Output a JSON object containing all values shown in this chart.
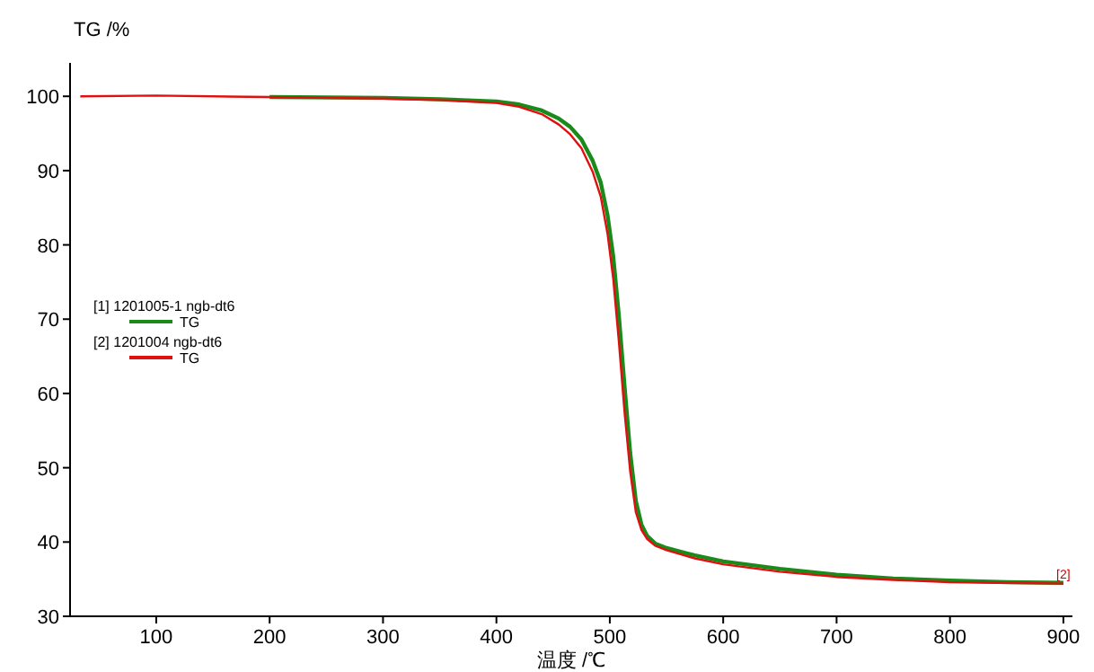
{
  "chart_data": {
    "type": "line",
    "xlabel": "温度 /℃",
    "ylabel": "TG /%",
    "xlim": [
      24,
      908
    ],
    "ylim": [
      30,
      104.5
    ],
    "xticks": [
      100,
      200,
      300,
      400,
      500,
      600,
      700,
      800,
      900
    ],
    "yticks": [
      30,
      40,
      50,
      60,
      70,
      80,
      90,
      100
    ],
    "grid": false,
    "legend": "left",
    "annotations": [
      "[1] 1201005-1 ngb-dt6",
      "[2] 1201004 ngb-dt6",
      {
        "text": "[2]",
        "x": 900,
        "y": 34.6
      }
    ],
    "series": [
      {
        "name": "TG",
        "color": "#1a8a1a",
        "x": [
          200,
          300,
          350,
          400,
          420,
          440,
          455,
          465,
          475,
          485,
          492,
          498,
          503,
          508,
          513,
          518,
          523,
          528,
          533,
          540,
          550,
          575,
          600,
          650,
          700,
          750,
          800,
          850,
          900
        ],
        "values": [
          99.9,
          99.8,
          99.6,
          99.3,
          98.9,
          98.1,
          97,
          95.9,
          94.2,
          91.3,
          88.4,
          84,
          78.5,
          70.5,
          61,
          52,
          45.5,
          42.3,
          40.8,
          39.8,
          39.2,
          38.2,
          37.4,
          36.4,
          35.6,
          35.1,
          34.8,
          34.6,
          34.5
        ]
      },
      {
        "name": "TG",
        "color": "#e01010",
        "x": [
          33,
          100,
          200,
          300,
          350,
          400,
          420,
          440,
          455,
          465,
          475,
          485,
          492,
          498,
          503,
          508,
          513,
          518,
          523,
          528,
          533,
          540,
          550,
          575,
          600,
          650,
          700,
          750,
          800,
          850,
          900
        ],
        "values": [
          100,
          100.1,
          99.9,
          99.7,
          99.5,
          99.1,
          98.6,
          97.6,
          96.2,
          94.9,
          93,
          89.8,
          86.5,
          81.5,
          75.5,
          67,
          57.5,
          49.5,
          44,
          41.6,
          40.4,
          39.5,
          38.9,
          37.8,
          37,
          36,
          35.3,
          34.9,
          34.6,
          34.5,
          34.4
        ]
      }
    ]
  }
}
